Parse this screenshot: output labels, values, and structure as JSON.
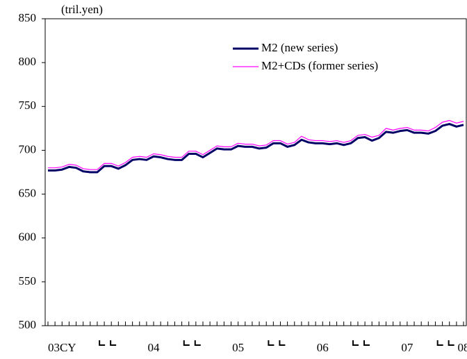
{
  "chart_data": {
    "type": "line",
    "y_unit": "(tril.yen)",
    "categories": [
      null,
      null,
      "03CY",
      null,
      null,
      null,
      null,
      null,
      null,
      null,
      null,
      null,
      null,
      null,
      null,
      "04",
      null,
      null,
      null,
      null,
      null,
      null,
      null,
      null,
      null,
      null,
      null,
      "05",
      null,
      null,
      null,
      null,
      null,
      null,
      null,
      null,
      null,
      null,
      null,
      "06",
      null,
      null,
      null,
      null,
      null,
      null,
      null,
      null,
      null,
      null,
      null,
      "07",
      null,
      null,
      null,
      null,
      null,
      null,
      null,
      "08"
    ],
    "series": [
      {
        "name": "M2 (new series)",
        "color": "#000066",
        "values": [
          677,
          677,
          678,
          681,
          680,
          676,
          675,
          675,
          682,
          682,
          679,
          683,
          689,
          690,
          689,
          693,
          692,
          690,
          689,
          689,
          696,
          696,
          692,
          697,
          702,
          701,
          701,
          705,
          704,
          704,
          702,
          703,
          708,
          708,
          704,
          706,
          712,
          709,
          708,
          708,
          707,
          708,
          706,
          708,
          714,
          715,
          711,
          714,
          721,
          720,
          722,
          723,
          720,
          720,
          719,
          722,
          728,
          730,
          727,
          729
        ]
      },
      {
        "name": "M2+CDs (former series)",
        "color": "#ff00ff",
        "values": [
          680,
          680,
          681,
          684,
          683,
          679,
          678,
          678,
          685,
          685,
          682,
          686,
          692,
          693,
          692,
          696,
          695,
          693,
          692,
          692,
          699,
          699,
          695,
          700,
          705,
          704,
          704,
          708,
          707,
          707,
          705,
          706,
          711,
          711,
          707,
          709,
          716,
          712,
          711,
          711,
          710,
          711,
          709,
          711,
          717,
          718,
          715,
          717,
          725,
          723,
          725,
          726,
          723,
          723,
          722,
          726,
          732,
          734,
          731,
          733
        ]
      }
    ],
    "ylim": [
      500,
      850
    ],
    "yticks": [
      500,
      550,
      600,
      650,
      700,
      750,
      800,
      850
    ],
    "grid": false,
    "legend": "upper right"
  }
}
